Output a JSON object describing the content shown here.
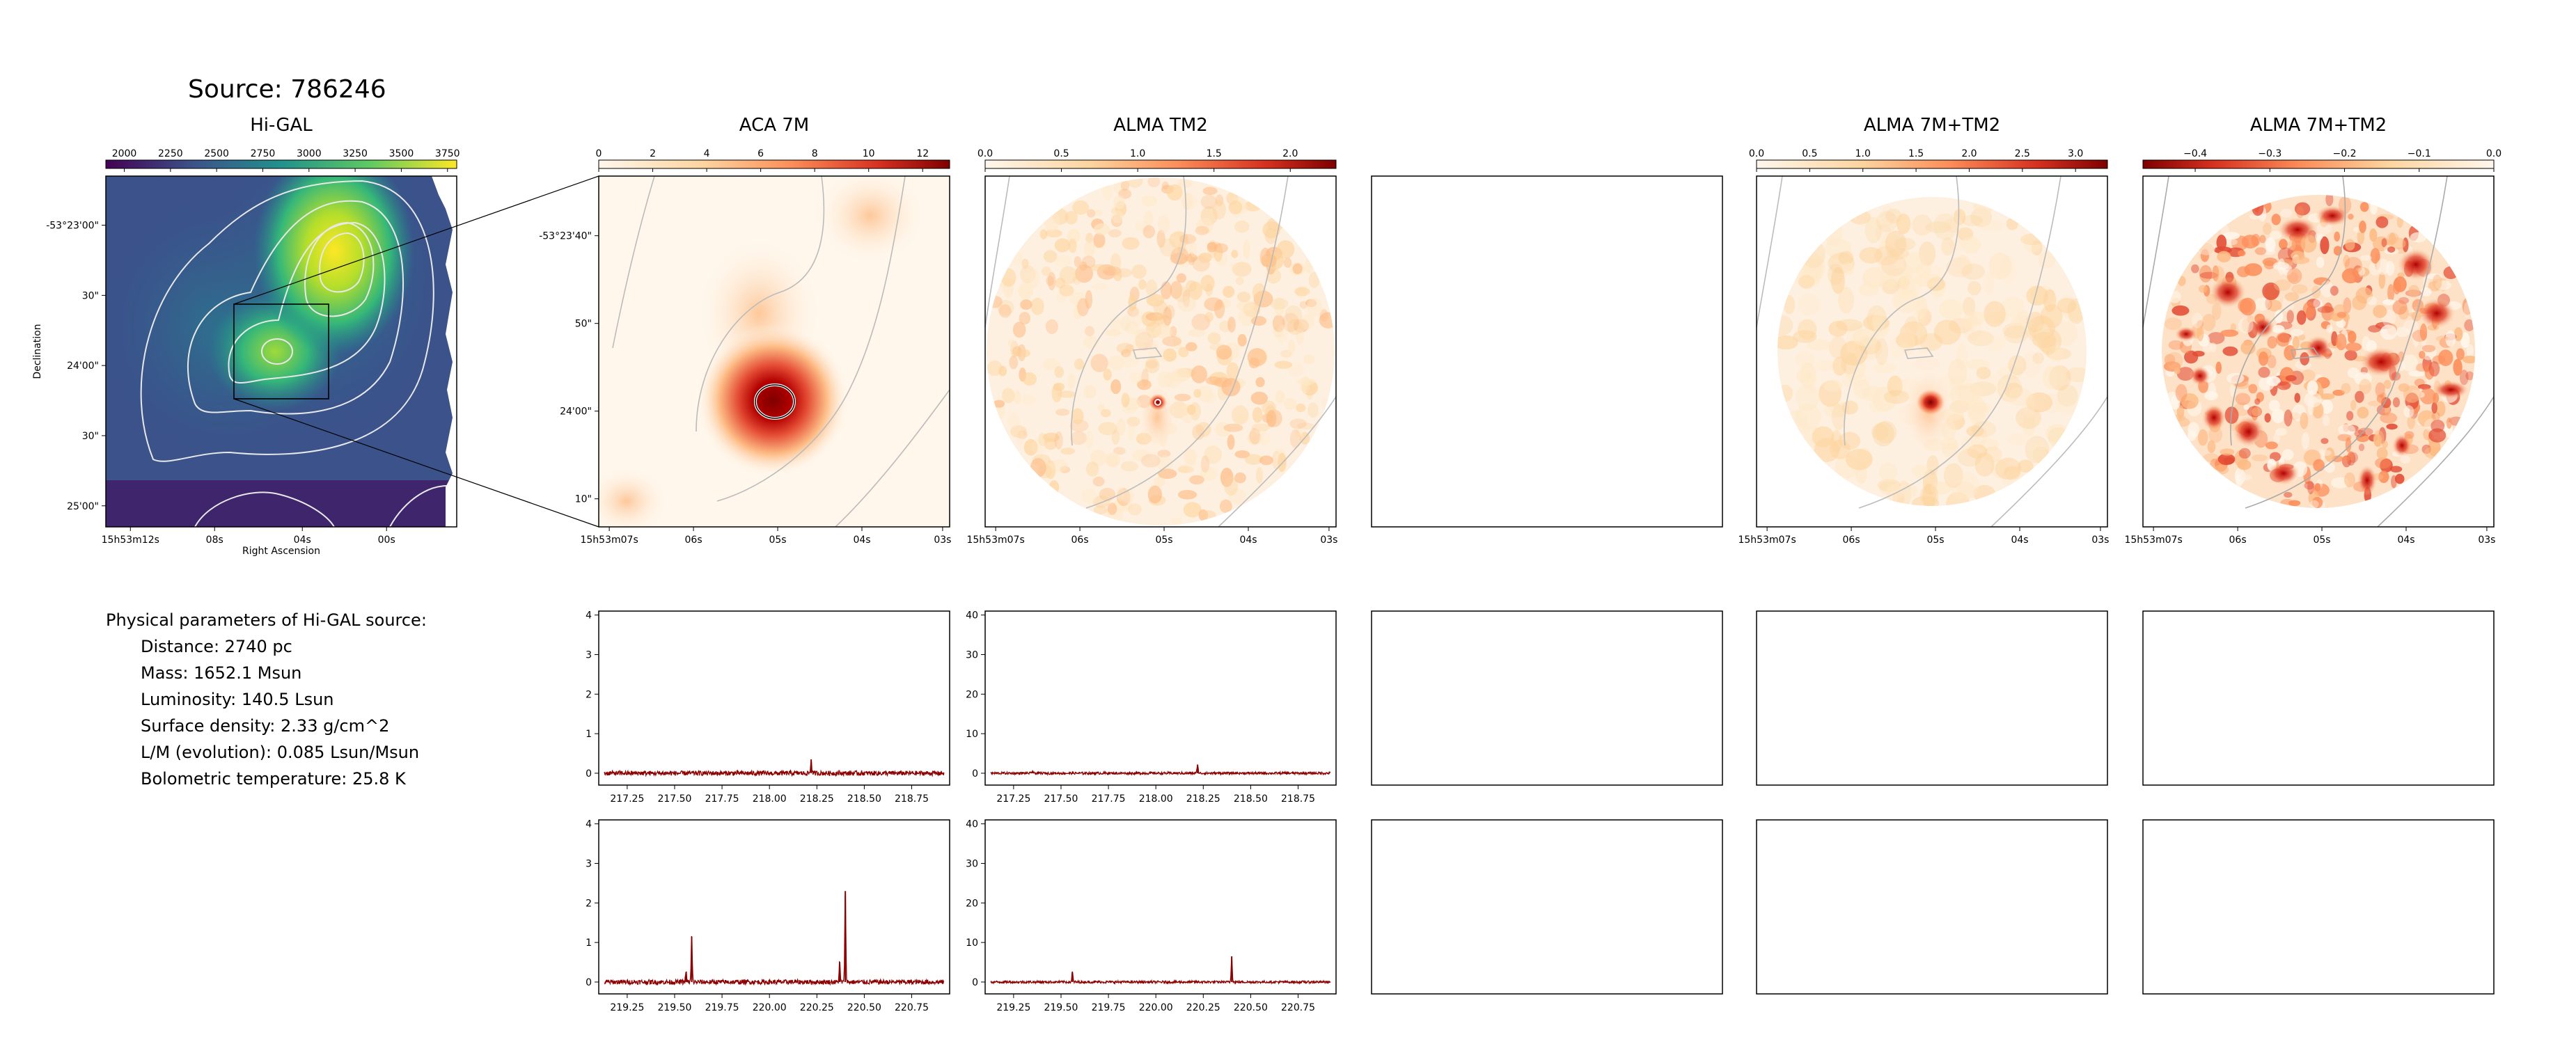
{
  "source_title": "Source: 786246",
  "params": {
    "header": "Physical parameters of Hi-GAL source:",
    "lines": [
      "Distance: 2740 pc",
      "Mass: 1652.1 Msun",
      "Luminosity: 140.5 Lsun",
      "Surface density: 2.33 g/cm^2",
      "L/M (evolution): 0.085 Lsun/Msun",
      "Bolometric temperature: 25.8 K"
    ]
  },
  "colors": {
    "viridis_dark": "#440154",
    "viridis_mid": "#21918c",
    "viridis_light": "#fde725",
    "orrd_light": "#fff7ec",
    "orrd_mid": "#fc8d59",
    "orrd_dark": "#7f0000",
    "spectrum": "#8b0000"
  },
  "chart_data": [
    {
      "type": "heatmap",
      "name": "higal_map",
      "title": "Hi-GAL",
      "xlabel": "Right Ascension",
      "ylabel": "Declination",
      "colormap": "viridis",
      "colorbar": {
        "ticks": [
          "2000",
          "2250",
          "2500",
          "2750",
          "3000",
          "3250",
          "3500",
          "3750"
        ],
        "range": [
          1900,
          3800
        ]
      },
      "x_ticks": [
        "15h53m12s",
        "08s",
        "04s",
        "00s"
      ],
      "y_ticks": [
        "-53°23'00\"",
        "30\"",
        "24'00\"",
        "30\"",
        "25'00\""
      ],
      "contours": true
    },
    {
      "type": "heatmap",
      "name": "aca7m_map",
      "title": "ACA 7M",
      "colormap": "OrRd",
      "colorbar": {
        "ticks": [
          "0",
          "2",
          "4",
          "6",
          "8",
          "10",
          "12"
        ],
        "range": [
          0,
          13
        ]
      },
      "x_ticks": [
        "15h53m07s",
        "06s",
        "05s",
        "04s",
        "03s"
      ],
      "y_ticks": [
        "-53°23'40\"",
        "50\"",
        "24'00\"",
        "10\""
      ]
    },
    {
      "type": "heatmap",
      "name": "tm2_map",
      "title": "ALMA TM2",
      "colormap": "OrRd",
      "colorbar": {
        "ticks": [
          "0.0",
          "0.5",
          "1.0",
          "1.5",
          "2.0"
        ],
        "range": [
          0,
          2.3
        ]
      },
      "x_ticks": [
        "15h53m07s",
        "06s",
        "05s",
        "04s",
        "03s"
      ]
    },
    {
      "type": "heatmap",
      "name": "combined_map",
      "title": "ALMA 7M+TM2",
      "colormap": "OrRd",
      "colorbar": {
        "ticks": [
          "0.0",
          "0.5",
          "1.0",
          "1.5",
          "2.0",
          "2.5",
          "3.0"
        ],
        "range": [
          0,
          3.3
        ]
      },
      "x_ticks": [
        "15h53m07s",
        "06s",
        "05s",
        "04s",
        "03s"
      ]
    },
    {
      "type": "heatmap",
      "name": "residual_map",
      "title": "ALMA 7M+TM2",
      "colormap": "OrRd_r",
      "colorbar": {
        "ticks": [
          "−0.4",
          "−0.3",
          "−0.2",
          "−0.1",
          "0.0"
        ],
        "range": [
          -0.47,
          0
        ]
      },
      "x_ticks": [
        "15h53m07s",
        "06s",
        "05s",
        "04s",
        "03s"
      ]
    },
    {
      "type": "line",
      "name": "spec_aca_low",
      "x_ticks": [
        "217.25",
        "217.50",
        "217.75",
        "218.00",
        "218.25",
        "218.50",
        "218.75"
      ],
      "y_ticks": [
        "0",
        "1",
        "2",
        "3",
        "4"
      ],
      "xlim": [
        217.1,
        218.95
      ],
      "ylim": [
        -0.3,
        4.1
      ],
      "lines": [
        {
          "x": 218.22,
          "peak": 0.35
        }
      ]
    },
    {
      "type": "line",
      "name": "spec_tm2_low",
      "x_ticks": [
        "217.25",
        "217.50",
        "217.75",
        "218.00",
        "218.25",
        "218.50",
        "218.75"
      ],
      "y_ticks": [
        "0",
        "10",
        "20",
        "30",
        "40"
      ],
      "xlim": [
        217.1,
        218.95
      ],
      "ylim": [
        -3,
        41
      ],
      "lines": [
        {
          "x": 217.35,
          "peak": 0.6
        },
        {
          "x": 218.22,
          "peak": 2.2
        }
      ]
    },
    {
      "type": "line",
      "name": "spec_aca_high",
      "x_ticks": [
        "219.25",
        "219.50",
        "219.75",
        "220.00",
        "220.25",
        "220.50",
        "220.75"
      ],
      "y_ticks": [
        "0",
        "1",
        "2",
        "3",
        "4"
      ],
      "xlim": [
        219.1,
        220.95
      ],
      "ylim": [
        -0.3,
        4.1
      ],
      "lines": [
        {
          "x": 219.56,
          "peak": 0.25
        },
        {
          "x": 219.59,
          "peak": 1.15
        },
        {
          "x": 220.37,
          "peak": 0.5
        },
        {
          "x": 220.4,
          "peak": 2.3
        }
      ]
    },
    {
      "type": "line",
      "name": "spec_tm2_high",
      "x_ticks": [
        "219.25",
        "219.50",
        "219.75",
        "220.00",
        "220.25",
        "220.50",
        "220.75"
      ],
      "y_ticks": [
        "0",
        "10",
        "20",
        "30",
        "40"
      ],
      "xlim": [
        219.1,
        220.95
      ],
      "ylim": [
        -3,
        41
      ],
      "lines": [
        {
          "x": 219.56,
          "peak": 2.5
        },
        {
          "x": 220.4,
          "peak": 6.5
        }
      ]
    }
  ]
}
